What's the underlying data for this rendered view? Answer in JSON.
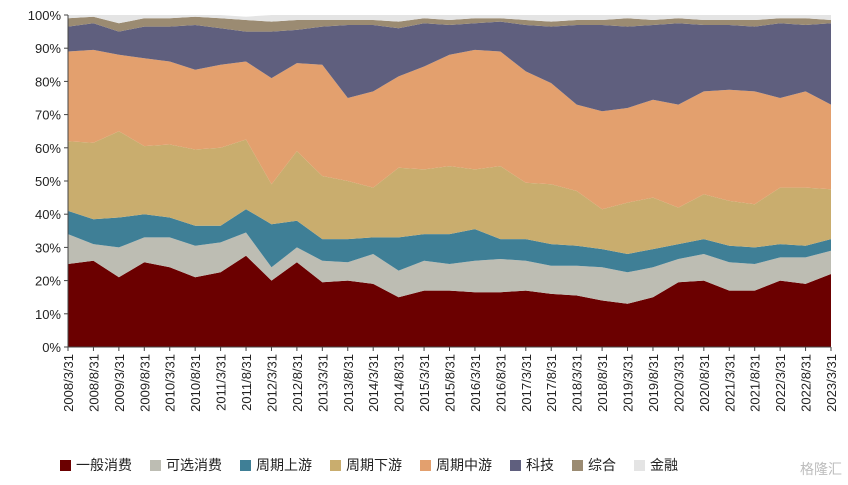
{
  "watermark": "格隆汇",
  "chart_data": {
    "type": "area",
    "stacked": true,
    "ylim": [
      0,
      100
    ],
    "yticks": [
      "0%",
      "10%",
      "20%",
      "30%",
      "40%",
      "50%",
      "60%",
      "70%",
      "80%",
      "90%",
      "100%"
    ],
    "x_labels": [
      "2008/3/31",
      "2008/8/31",
      "2009/3/31",
      "2009/8/31",
      "2010/3/31",
      "2010/8/31",
      "2011/3/31",
      "2011/8/31",
      "2012/3/31",
      "2012/8/31",
      "2013/3/31",
      "2013/8/31",
      "2014/3/31",
      "2014/8/31",
      "2015/3/31",
      "2015/8/31",
      "2016/3/31",
      "2016/8/31",
      "2017/3/31",
      "2017/8/31",
      "2018/3/31",
      "2018/8/31",
      "2019/3/31",
      "2019/8/31",
      "2020/3/31",
      "2020/8/31",
      "2021/3/31",
      "2021/8/31",
      "2022/3/31",
      "2022/8/31",
      "2023/3/31"
    ],
    "legend_position": "bottom",
    "grid": false,
    "series": [
      {
        "name": "一般消费",
        "color": "#6b0000",
        "values": [
          25,
          26,
          21,
          25.5,
          24,
          21,
          22.5,
          27.5,
          20,
          25.5,
          19.5,
          20,
          19,
          15,
          17,
          17,
          16.5,
          16.5,
          17,
          16,
          15.5,
          14,
          13,
          15,
          19.5,
          20,
          17,
          17,
          20,
          19,
          22
        ]
      },
      {
        "name": "可选消费",
        "color": "#bdbdb3",
        "values": [
          9,
          5,
          9,
          7.5,
          9,
          9.5,
          9,
          7,
          4,
          4.5,
          6.5,
          5.5,
          9,
          8,
          9,
          8,
          9.5,
          10,
          9,
          8.5,
          9,
          10,
          9.5,
          9,
          7,
          8,
          8.5,
          8,
          7,
          8,
          7
        ]
      },
      {
        "name": "周期上游",
        "color": "#3f7f96",
        "values": [
          7,
          7.5,
          9,
          7,
          6,
          6,
          5,
          7,
          13,
          8,
          6.5,
          7,
          5,
          10,
          8,
          9,
          9.5,
          6,
          6.5,
          6.5,
          6,
          5.5,
          5.5,
          5.5,
          4.5,
          4.5,
          5,
          5,
          4,
          3.5,
          3.5
        ]
      },
      {
        "name": "周期下游",
        "color": "#c9ad6e",
        "values": [
          21,
          23,
          26,
          20.5,
          22,
          23,
          23.5,
          21,
          12,
          21,
          19,
          17.5,
          15,
          21,
          19.5,
          20.5,
          18,
          22,
          17,
          18,
          16.5,
          12,
          15.5,
          15.5,
          11,
          13.5,
          13.5,
          13,
          17,
          17.5,
          15
        ]
      },
      {
        "name": "周期中游",
        "color": "#e3a06e",
        "values": [
          27,
          28,
          23,
          26.5,
          25,
          24,
          25,
          23.5,
          32,
          26.5,
          33.5,
          25,
          29,
          27.5,
          31,
          33.5,
          36,
          34.5,
          33.5,
          30.5,
          26,
          29.5,
          28.5,
          29.5,
          31,
          31,
          33.5,
          34,
          27,
          29,
          25.5
        ]
      },
      {
        "name": "科技",
        "color": "#5f5f7e",
        "values": [
          7.5,
          8,
          7,
          9.5,
          10.5,
          13.5,
          11,
          9,
          14,
          10,
          11.5,
          22,
          20,
          14.5,
          13,
          9,
          8,
          9,
          14,
          17,
          24,
          26,
          24.5,
          22.5,
          24.5,
          20,
          19.5,
          19.5,
          22.5,
          20,
          24.5
        ]
      },
      {
        "name": "综合",
        "color": "#9b8b72",
        "values": [
          2.5,
          2,
          2.5,
          2.5,
          2.5,
          2.5,
          3,
          3.5,
          3,
          3,
          2,
          1.5,
          1.5,
          2,
          1.5,
          1.5,
          1.5,
          1,
          1.5,
          1.5,
          1.5,
          1.5,
          2.5,
          1.5,
          1.5,
          1.5,
          1.5,
          2,
          1.5,
          2,
          1
        ]
      },
      {
        "name": "金融",
        "color": "#e4e4e4",
        "values": [
          1,
          0.5,
          2.5,
          1.5,
          1,
          0.5,
          1,
          1,
          2,
          1.5,
          1.5,
          1.5,
          1.5,
          2,
          1,
          1.5,
          1,
          1,
          1.5,
          2,
          1.5,
          1.5,
          1,
          1.5,
          1,
          1.5,
          1.5,
          1.5,
          1,
          1,
          1.5
        ]
      }
    ]
  }
}
